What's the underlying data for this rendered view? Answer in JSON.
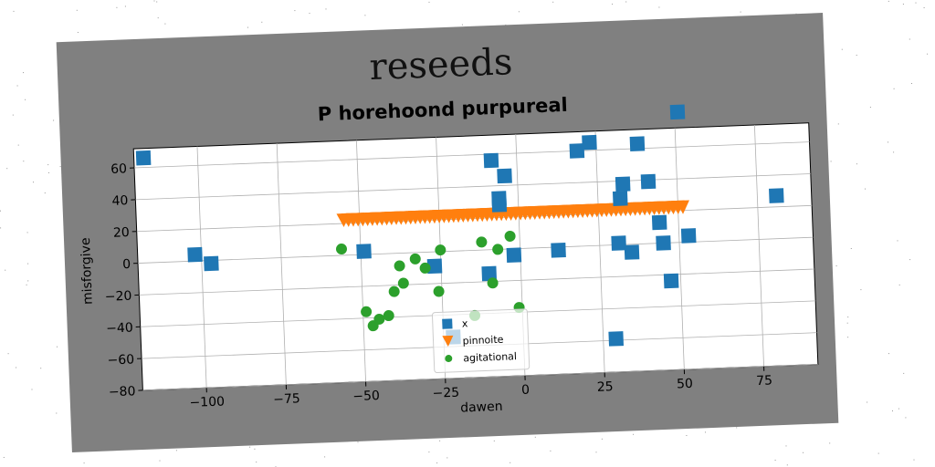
{
  "header": {
    "suptitle": "reseeds"
  },
  "chart_data": {
    "type": "scatter",
    "title": "P horehoond purpureal",
    "xlabel": "dawen",
    "ylabel": "misforgive",
    "xlim": [
      -120,
      92
    ],
    "ylim": [
      -80,
      72
    ],
    "xticks": [
      -100,
      -75,
      -50,
      -25,
      0,
      25,
      50,
      75
    ],
    "yticks": [
      -80,
      -60,
      -40,
      -20,
      0,
      20,
      40,
      60
    ],
    "grid": true,
    "legend_position": "lower-center",
    "series": [
      {
        "name": "x",
        "marker": "square",
        "color": "#1f77b4",
        "points": [
          [
            -117,
            66
          ],
          [
            -102,
            4
          ],
          [
            -97,
            -2
          ],
          [
            -49,
            2
          ],
          [
            -27,
            -9
          ],
          [
            -22,
            -54
          ],
          [
            -10,
            -15
          ],
          [
            -8,
            56
          ],
          [
            -6,
            32
          ],
          [
            -6,
            28
          ],
          [
            -4,
            46
          ],
          [
            -2,
            -4
          ],
          [
            12,
            -2
          ],
          [
            19,
            60
          ],
          [
            23,
            65
          ],
          [
            29,
            -59
          ],
          [
            31,
            1
          ],
          [
            32,
            29
          ],
          [
            33,
            38
          ],
          [
            35,
            -5
          ],
          [
            38,
            63
          ],
          [
            41,
            39
          ],
          [
            44,
            13
          ],
          [
            45,
            0
          ],
          [
            47,
            -24
          ],
          [
            51,
            82
          ],
          [
            53,
            4
          ],
          [
            81,
            27
          ]
        ]
      },
      {
        "name": "pinnoite",
        "marker": "triangle-down",
        "color": "#ff7f0e",
        "x_start": -55,
        "x_end": 52,
        "x_step": 1.5,
        "y": 22
      },
      {
        "name": "agitational",
        "marker": "circle",
        "color": "#2ca02c",
        "points": [
          [
            -56,
            4
          ],
          [
            -49,
            -36
          ],
          [
            -47,
            -45
          ],
          [
            -45,
            -41
          ],
          [
            -42,
            -39
          ],
          [
            -40,
            -24
          ],
          [
            -38,
            -8
          ],
          [
            -37,
            -19
          ],
          [
            -33,
            -4
          ],
          [
            -30,
            -10
          ],
          [
            -26,
            -25
          ],
          [
            -25,
            1
          ],
          [
            -15,
            -41
          ],
          [
            -12,
            5
          ],
          [
            -9,
            -21
          ],
          [
            -7,
            0
          ],
          [
            -3,
            8
          ],
          [
            -1,
            -37
          ]
        ]
      }
    ]
  }
}
